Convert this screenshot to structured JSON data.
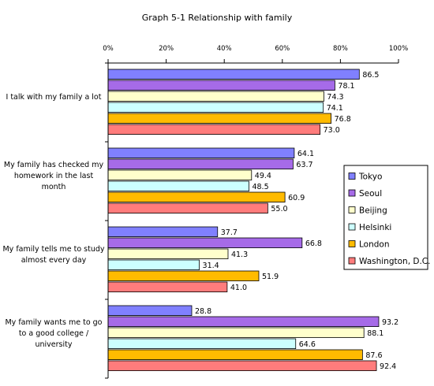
{
  "chart_data": {
    "type": "bar",
    "orientation": "horizontal",
    "title": "Graph 5-1   Relationship with family",
    "categories": [
      "I talk with my family a lot",
      "My family has checked my homework in the last month",
      "My family tells me to study almost every day",
      "My family wants me to go to a good college / university"
    ],
    "category_lines": [
      [
        "I talk with my family a lot"
      ],
      [
        "My family has checked my",
        "homework in the last",
        "month"
      ],
      [
        "My family tells me to study",
        "almost every day"
      ],
      [
        "My family wants me to go",
        "to a good college /",
        "university"
      ]
    ],
    "series": [
      {
        "name": "Tokyo",
        "color": "#8080ff",
        "values": [
          86.5,
          64.1,
          37.7,
          28.8
        ],
        "labels": [
          "86.5",
          "64.1",
          "37.7",
          "28.8"
        ]
      },
      {
        "name": "Seoul",
        "color": "#a66be8",
        "values": [
          78.1,
          63.7,
          66.8,
          93.2
        ],
        "labels": [
          "78.1",
          "63.7",
          "66.8",
          "93.2"
        ]
      },
      {
        "name": "Beijing",
        "color": "#ffffcc",
        "values": [
          74.3,
          49.4,
          41.3,
          88.1
        ],
        "labels": [
          "74.3",
          "49.4",
          "41.3",
          "88.1"
        ]
      },
      {
        "name": "Helsinki",
        "color": "#ccffff",
        "values": [
          74.1,
          48.5,
          31.4,
          64.6
        ],
        "labels": [
          "74.1",
          "48.5",
          "31.4",
          "64.6"
        ]
      },
      {
        "name": "London",
        "color": "#ffbb00",
        "values": [
          76.8,
          60.9,
          51.9,
          87.6
        ],
        "labels": [
          "76.8",
          "60.9",
          "51.9",
          "87.6"
        ]
      },
      {
        "name": "Washington, D.C.",
        "color": "#ff7c7c",
        "values": [
          73.0,
          55.0,
          41.0,
          92.4
        ],
        "labels": [
          "73.0",
          "55.0",
          "41.0",
          "92.4"
        ]
      }
    ],
    "x_ticks": [
      "0%",
      "20%",
      "40%",
      "60%",
      "80%",
      "100%"
    ],
    "xlim": [
      0,
      100
    ],
    "grid": false,
    "legend_position": "right"
  }
}
